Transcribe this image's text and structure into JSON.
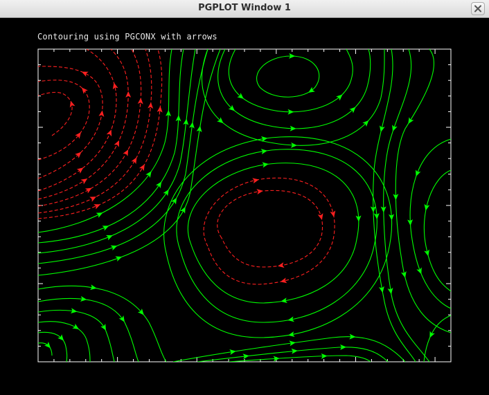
{
  "window": {
    "title": "PGPLOT Window 1"
  },
  "plot": {
    "title": "Contouring using PGCONX with arrows",
    "colors": {
      "positive": "#00ff00",
      "negative": "#ff2020",
      "frame": "#ffffff",
      "background": "#000000"
    },
    "line_styles": {
      "positive": "solid",
      "negative": "dashed"
    }
  }
}
